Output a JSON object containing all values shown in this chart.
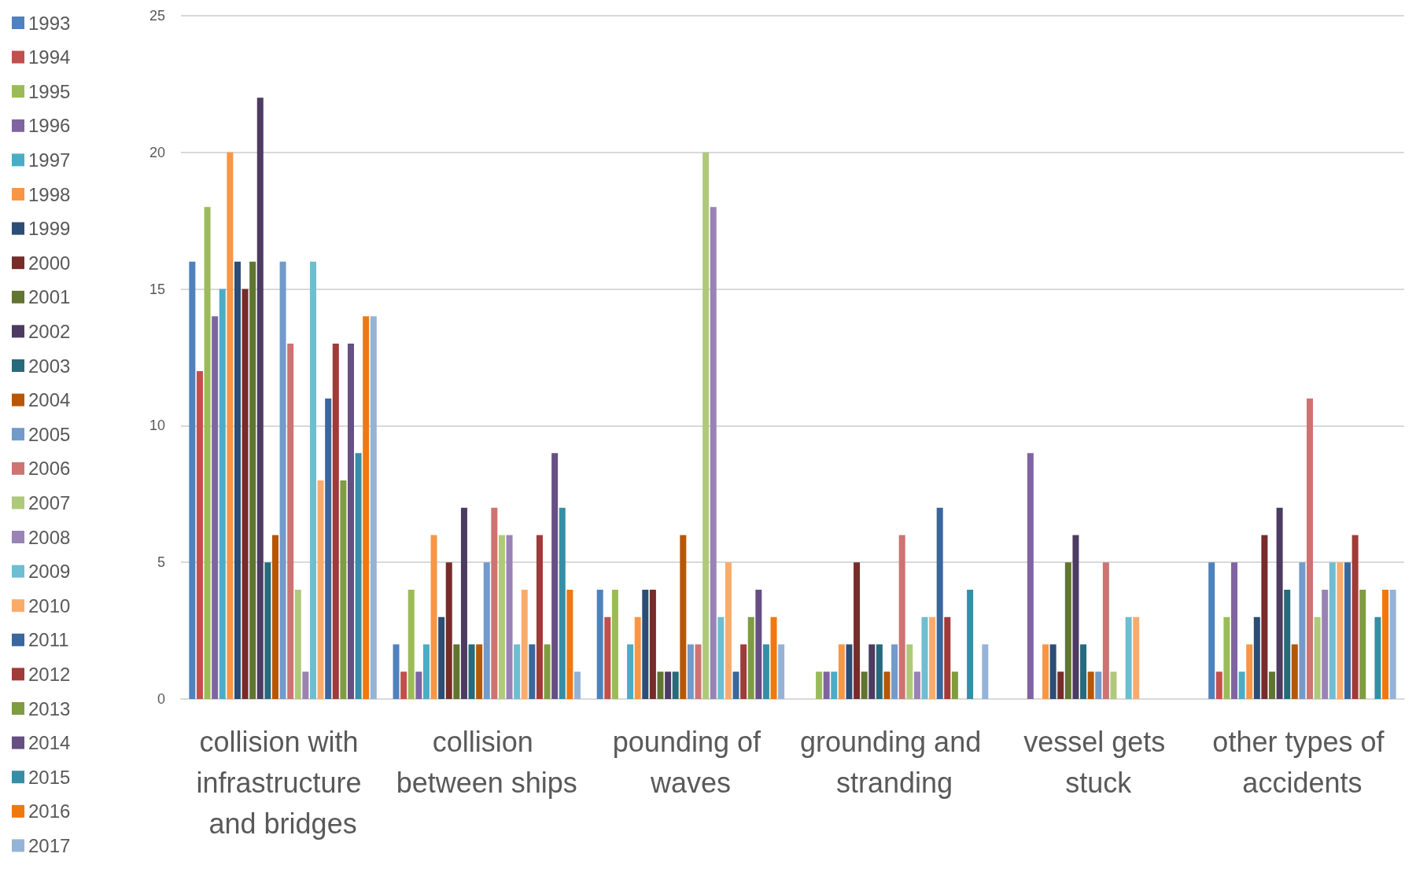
{
  "chart_data": {
    "type": "bar",
    "categories": [
      "collision with infrastructure and bridges",
      "collision between ships",
      "pounding of waves",
      "grounding and stranding",
      "vessel gets stuck",
      "other types of accidents"
    ],
    "ylim": [
      0,
      25
    ],
    "yticks": [
      0,
      5,
      10,
      15,
      20,
      25
    ],
    "grid": "y",
    "legend": "left",
    "series": [
      {
        "name": "1993",
        "color": "#4f81bd",
        "values": [
          16,
          2,
          4,
          null,
          null,
          5
        ]
      },
      {
        "name": "1994",
        "color": "#c0504d",
        "values": [
          12,
          1,
          3,
          null,
          null,
          1
        ]
      },
      {
        "name": "1995",
        "color": "#9bbb59",
        "values": [
          18,
          4,
          4,
          1,
          null,
          3
        ]
      },
      {
        "name": "1996",
        "color": "#8064a2",
        "values": [
          14,
          1,
          null,
          1,
          9,
          5
        ]
      },
      {
        "name": "1997",
        "color": "#4bacc6",
        "values": [
          15,
          2,
          2,
          1,
          null,
          1
        ]
      },
      {
        "name": "1998",
        "color": "#f79646",
        "values": [
          20,
          6,
          3,
          2,
          2,
          2
        ]
      },
      {
        "name": "1999",
        "color": "#2c4d75",
        "values": [
          16,
          3,
          4,
          2,
          2,
          3
        ]
      },
      {
        "name": "2000",
        "color": "#772c2a",
        "values": [
          15,
          5,
          4,
          5,
          1,
          6
        ]
      },
      {
        "name": "2001",
        "color": "#5f7530",
        "values": [
          16,
          2,
          1,
          1,
          5,
          1
        ]
      },
      {
        "name": "2002",
        "color": "#4d3b62",
        "values": [
          22,
          7,
          1,
          2,
          6,
          7
        ]
      },
      {
        "name": "2003",
        "color": "#276a7c",
        "values": [
          5,
          2,
          1,
          2,
          2,
          4
        ]
      },
      {
        "name": "2004",
        "color": "#b65708",
        "values": [
          6,
          2,
          6,
          1,
          1,
          2
        ]
      },
      {
        "name": "2005",
        "color": "#729aca",
        "values": [
          16,
          5,
          2,
          2,
          1,
          5
        ]
      },
      {
        "name": "2006",
        "color": "#cd7371",
        "values": [
          13,
          7,
          2,
          6,
          5,
          11
        ]
      },
      {
        "name": "2007",
        "color": "#afc97a",
        "values": [
          4,
          6,
          20,
          2,
          1,
          3
        ]
      },
      {
        "name": "2008",
        "color": "#9983b5",
        "values": [
          1,
          6,
          18,
          1,
          null,
          4
        ]
      },
      {
        "name": "2009",
        "color": "#6fbdd1",
        "values": [
          16,
          2,
          3,
          3,
          3,
          5
        ]
      },
      {
        "name": "2010",
        "color": "#f9ab6b",
        "values": [
          8,
          4,
          5,
          3,
          3,
          5
        ]
      },
      {
        "name": "2011",
        "color": "#3a679c",
        "values": [
          11,
          2,
          1,
          7,
          null,
          5
        ]
      },
      {
        "name": "2012",
        "color": "#9f3b38",
        "values": [
          13,
          6,
          2,
          3,
          null,
          6
        ]
      },
      {
        "name": "2013",
        "color": "#7f9c40",
        "values": [
          8,
          2,
          3,
          1,
          null,
          4
        ]
      },
      {
        "name": "2014",
        "color": "#664f83",
        "values": [
          13,
          9,
          4,
          null,
          null,
          null
        ]
      },
      {
        "name": "2015",
        "color": "#358ea6",
        "values": [
          9,
          7,
          2,
          4,
          null,
          3
        ]
      },
      {
        "name": "2016",
        "color": "#f07810",
        "values": [
          14,
          4,
          3,
          null,
          null,
          4
        ]
      },
      {
        "name": "2017",
        "color": "#95b3d7",
        "values": [
          14,
          1,
          2,
          2,
          null,
          4
        ]
      }
    ]
  }
}
